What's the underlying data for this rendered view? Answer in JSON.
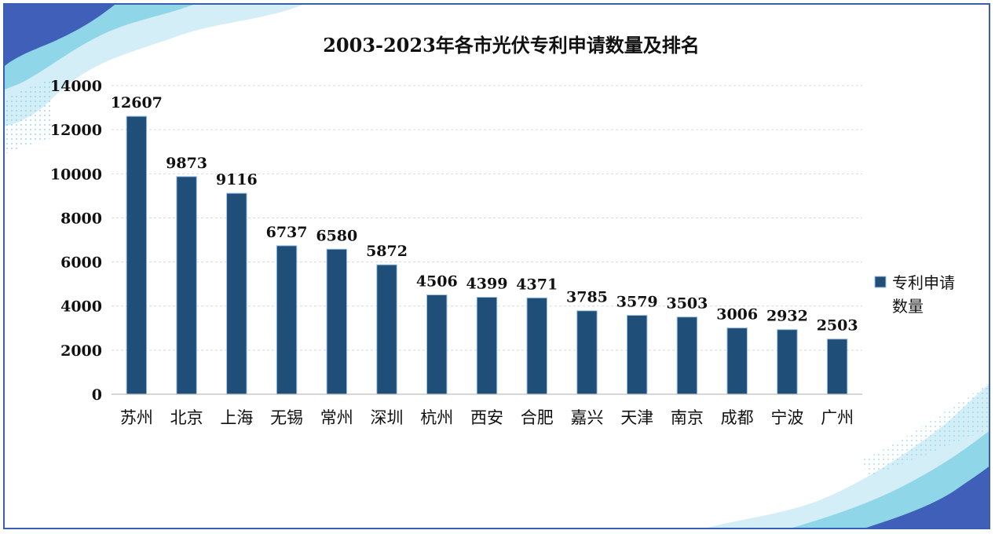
{
  "chart_data": {
    "type": "bar",
    "title": "2003-2023年各市光伏专利申请数量及排名",
    "categories": [
      "苏州",
      "北京",
      "上海",
      "无锡",
      "常州",
      "深圳",
      "杭州",
      "西安",
      "合肥",
      "嘉兴",
      "天津",
      "南京",
      "成都",
      "宁波",
      "广州"
    ],
    "series": [
      {
        "name": "专利申请数量",
        "legend_lines": [
          "专利申请",
          "数量"
        ],
        "values": [
          12607,
          9873,
          9116,
          6737,
          6580,
          5872,
          4506,
          4399,
          4371,
          3785,
          3579,
          3503,
          3006,
          2932,
          2503
        ],
        "color": "#1f4e79"
      }
    ],
    "ylim": [
      0,
      14000
    ],
    "yticks": [
      "0",
      "2000",
      "4000",
      "6000",
      "8000",
      "10000",
      "12000",
      "14000"
    ],
    "grid": true,
    "legend_position": "right",
    "data_labels": true
  },
  "decor_colors": {
    "frame": "#3a5fb0",
    "wave_dark": "#3f5fb8",
    "wave_light": "#8fd6e8",
    "wave_pale": "#d3eef6"
  }
}
